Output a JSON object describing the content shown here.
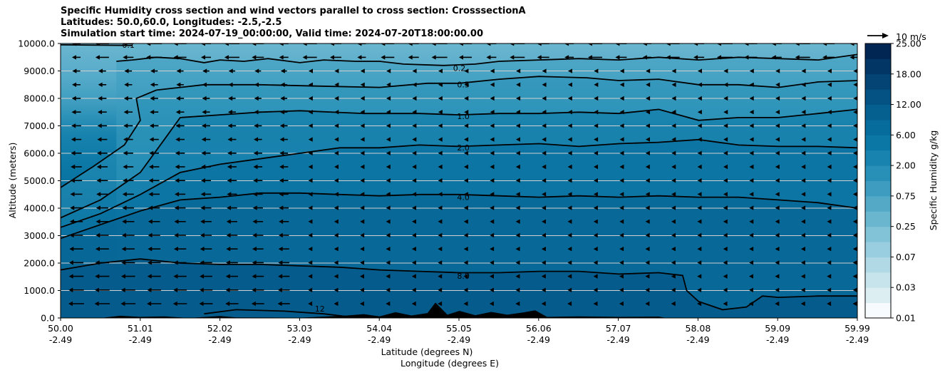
{
  "chart_data": {
    "type": "heatmap",
    "title_lines": [
      "Specific Humidity cross section and wind vectors parallel to cross section: CrosssectionA",
      "Latitudes: 50.0,60.0, Longitudes: -2.5,-2.5",
      "Simulation start time: 2024-07-19_00:00:00, Valid time: 2024-07-20T18:00:00.00"
    ],
    "xlabel_lat": "Latitude (degrees N)",
    "xlabel_lon": "Longitude (degrees E)",
    "ylabel": "Altitude (meters)",
    "x_range": [
      50.0,
      59.99
    ],
    "ylim": [
      0,
      10000
    ],
    "x_ticks_lat": [
      "50.00",
      "51.01",
      "52.02",
      "53.03",
      "54.04",
      "55.05",
      "56.06",
      "57.07",
      "58.08",
      "59.09",
      "59.99"
    ],
    "x_ticks_lon": [
      "-2.49",
      "-2.49",
      "-2.49",
      "-2.49",
      "-2.49",
      "-2.49",
      "-2.49",
      "-2.49",
      "-2.49",
      "-2.49",
      "-2.49"
    ],
    "y_ticks": [
      {
        "value": 0,
        "label": "0.0"
      },
      {
        "value": 1000,
        "label": "1000.0"
      },
      {
        "value": 2000,
        "label": "2000.0"
      },
      {
        "value": 3000,
        "label": "3000.0"
      },
      {
        "value": 4000,
        "label": "4000.0"
      },
      {
        "value": 5000,
        "label": "5000.0"
      },
      {
        "value": 6000,
        "label": "6000.0"
      },
      {
        "value": 7000,
        "label": "7000.0"
      },
      {
        "value": 8000,
        "label": "8000.0"
      },
      {
        "value": 9000,
        "label": "9000.0"
      },
      {
        "value": 10000,
        "label": "10000.0"
      }
    ],
    "colorbar": {
      "label": "Specific Humidity g/kg",
      "levels": [
        0.01,
        0.02,
        0.03,
        0.05,
        0.07,
        0.1,
        0.25,
        0.5,
        0.75,
        1.0,
        2.0,
        3.0,
        6.0,
        9.0,
        12.0,
        15.0,
        18.0,
        21.0,
        25.0
      ],
      "tick_labels": [
        "0.01",
        "0.03",
        "0.07",
        "0.25",
        "0.75",
        "2.00",
        "6.00",
        "12.00",
        "18.00",
        "25.00"
      ],
      "colors": [
        "#f7fbfd",
        "#ddeef3",
        "#c7e4ec",
        "#b1d9e5",
        "#98cedf",
        "#82c3d8",
        "#6ab6cf",
        "#54a9c7",
        "#3d9cbf",
        "#2890b7",
        "#1883ae",
        "#0b77a5",
        "#066c9c",
        "#05608f",
        "#045283",
        "#034474",
        "#023664",
        "#012654"
      ]
    },
    "vector_key": "10 m/s",
    "contours": [
      {
        "label": "0.1",
        "points": [
          [
            50.0,
            9950
          ],
          [
            50.9,
            9930
          ]
        ]
      },
      {
        "label": "0.2",
        "points": [
          [
            50.7,
            9350
          ],
          [
            50.9,
            9400
          ],
          [
            51.2,
            9500
          ],
          [
            51.5,
            9450
          ],
          [
            51.8,
            9300
          ],
          [
            52.0,
            9400
          ],
          [
            52.3,
            9350
          ],
          [
            52.6,
            9450
          ],
          [
            53.0,
            9300
          ],
          [
            53.3,
            9400
          ],
          [
            53.7,
            9350
          ],
          [
            54.0,
            9350
          ],
          [
            54.3,
            9250
          ],
          [
            54.8,
            9200
          ],
          [
            55.2,
            9250
          ],
          [
            55.5,
            9350
          ],
          [
            56.0,
            9400
          ],
          [
            56.5,
            9450
          ],
          [
            57.0,
            9400
          ],
          [
            57.5,
            9500
          ],
          [
            58.0,
            9400
          ],
          [
            58.5,
            9500
          ],
          [
            59.0,
            9450
          ],
          [
            59.5,
            9400
          ],
          [
            59.99,
            9600
          ]
        ]
      },
      {
        "label": "0.5",
        "points": [
          [
            50.0,
            4750
          ],
          [
            50.4,
            5500
          ],
          [
            50.8,
            6300
          ],
          [
            51.0,
            7200
          ],
          [
            50.95,
            8000
          ],
          [
            51.2,
            8300
          ],
          [
            51.8,
            8500
          ],
          [
            52.5,
            8500
          ],
          [
            53.2,
            8450
          ],
          [
            54.0,
            8400
          ],
          [
            54.6,
            8550
          ],
          [
            55.0,
            8550
          ],
          [
            55.5,
            8700
          ],
          [
            56.0,
            8800
          ],
          [
            56.6,
            8750
          ],
          [
            57.0,
            8650
          ],
          [
            57.5,
            8700
          ],
          [
            58.0,
            8500
          ],
          [
            58.5,
            8500
          ],
          [
            59.0,
            8400
          ],
          [
            59.5,
            8600
          ],
          [
            59.99,
            8650
          ]
        ]
      },
      {
        "label": "1.0",
        "points": [
          [
            50.0,
            3650
          ],
          [
            50.5,
            4300
          ],
          [
            51.0,
            5300
          ],
          [
            51.3,
            6500
          ],
          [
            51.5,
            7300
          ],
          [
            52.0,
            7400
          ],
          [
            52.5,
            7500
          ],
          [
            53.0,
            7550
          ],
          [
            53.8,
            7450
          ],
          [
            54.5,
            7450
          ],
          [
            55.0,
            7400
          ],
          [
            55.5,
            7450
          ],
          [
            56.0,
            7450
          ],
          [
            56.5,
            7500
          ],
          [
            57.0,
            7450
          ],
          [
            57.5,
            7600
          ],
          [
            58.0,
            7200
          ],
          [
            58.5,
            7300
          ],
          [
            59.0,
            7300
          ],
          [
            59.5,
            7450
          ],
          [
            59.99,
            7600
          ]
        ]
      },
      {
        "label": "2.0",
        "points": [
          [
            50.0,
            3300
          ],
          [
            50.5,
            3800
          ],
          [
            51.0,
            4500
          ],
          [
            51.5,
            5300
          ],
          [
            52.0,
            5600
          ],
          [
            52.5,
            5800
          ],
          [
            53.0,
            6000
          ],
          [
            53.5,
            6200
          ],
          [
            54.0,
            6200
          ],
          [
            54.5,
            6300
          ],
          [
            55.0,
            6250
          ],
          [
            55.5,
            6300
          ],
          [
            56.0,
            6350
          ],
          [
            56.5,
            6250
          ],
          [
            57.0,
            6350
          ],
          [
            57.5,
            6400
          ],
          [
            58.0,
            6500
          ],
          [
            58.5,
            6300
          ],
          [
            59.0,
            6250
          ],
          [
            59.5,
            6250
          ],
          [
            59.99,
            6200
          ]
        ]
      },
      {
        "label": "4.0",
        "points": [
          [
            50.0,
            2900
          ],
          [
            50.5,
            3400
          ],
          [
            51.0,
            3900
          ],
          [
            51.5,
            4300
          ],
          [
            52.0,
            4400
          ],
          [
            52.5,
            4550
          ],
          [
            53.0,
            4550
          ],
          [
            53.5,
            4500
          ],
          [
            54.0,
            4450
          ],
          [
            54.5,
            4500
          ],
          [
            55.0,
            4500
          ],
          [
            55.5,
            4450
          ],
          [
            56.0,
            4400
          ],
          [
            56.5,
            4450
          ],
          [
            57.0,
            4400
          ],
          [
            57.5,
            4450
          ],
          [
            58.0,
            4400
          ],
          [
            58.5,
            4400
          ],
          [
            59.0,
            4300
          ],
          [
            59.5,
            4200
          ],
          [
            59.99,
            4000
          ]
        ]
      },
      {
        "label": "8.0",
        "points": [
          [
            50.0,
            1750
          ],
          [
            50.5,
            2000
          ],
          [
            51.0,
            2150
          ],
          [
            51.5,
            2000
          ],
          [
            52.0,
            1950
          ],
          [
            52.5,
            1950
          ],
          [
            53.0,
            1900
          ],
          [
            53.5,
            1850
          ],
          [
            54.0,
            1750
          ],
          [
            54.5,
            1700
          ],
          [
            55.0,
            1650
          ],
          [
            55.5,
            1650
          ],
          [
            56.0,
            1700
          ],
          [
            56.5,
            1700
          ],
          [
            57.0,
            1600
          ],
          [
            57.5,
            1650
          ],
          [
            57.8,
            1550
          ],
          [
            57.85,
            1000
          ],
          [
            58.0,
            600
          ],
          [
            58.3,
            300
          ],
          [
            58.6,
            400
          ],
          [
            58.8,
            800
          ],
          [
            59.0,
            750
          ],
          [
            59.5,
            800
          ],
          [
            59.99,
            800
          ]
        ]
      },
      {
        "label": "12",
        "points": [
          [
            51.8,
            150
          ],
          [
            52.2,
            300
          ],
          [
            52.8,
            250
          ],
          [
            53.3,
            150
          ],
          [
            53.6,
            50
          ]
        ]
      }
    ]
  }
}
